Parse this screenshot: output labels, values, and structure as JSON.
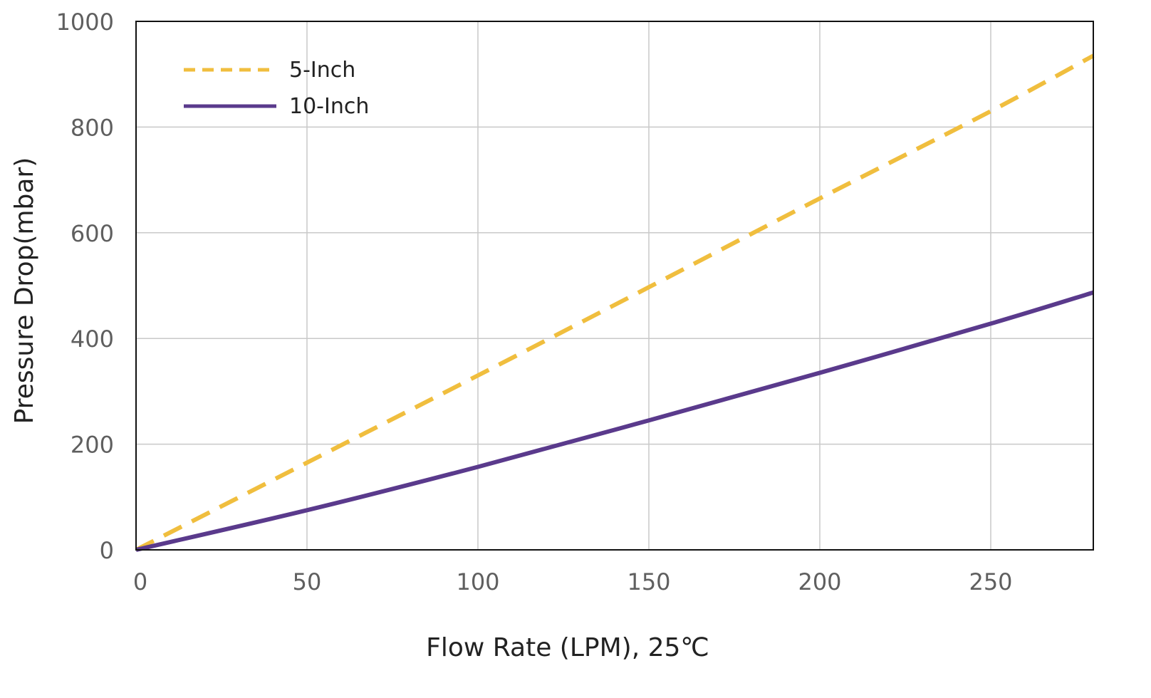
{
  "chart_data": {
    "type": "line",
    "title": "",
    "xlabel": "Flow Rate (LPM), 25℃",
    "ylabel": "Pressure Drop(mbar)",
    "xlim": [
      0,
      280
    ],
    "ylim": [
      0,
      1000
    ],
    "xticks": [
      0,
      50,
      100,
      150,
      200,
      250
    ],
    "yticks": [
      0,
      200,
      400,
      600,
      800,
      1000
    ],
    "xtick_labels": [
      "0",
      "50",
      "100",
      "150",
      "200",
      "250"
    ],
    "ytick_labels": [
      "0",
      "200",
      "400",
      "600",
      "800",
      "1000"
    ],
    "grid": true,
    "legend": {
      "position": "top-left"
    },
    "series": [
      {
        "name": "5-Inch",
        "style": "dashed",
        "color": "#F0BE3E",
        "x": [
          0,
          50,
          100,
          150,
          200,
          250,
          280
        ],
        "y": [
          0,
          165,
          330,
          497,
          665,
          830,
          935
        ]
      },
      {
        "name": "10-Inch",
        "style": "solid",
        "color": "#5A3A8C",
        "x": [
          0,
          50,
          100,
          150,
          200,
          250,
          280
        ],
        "y": [
          0,
          75,
          157,
          245,
          335,
          428,
          487
        ]
      }
    ]
  }
}
